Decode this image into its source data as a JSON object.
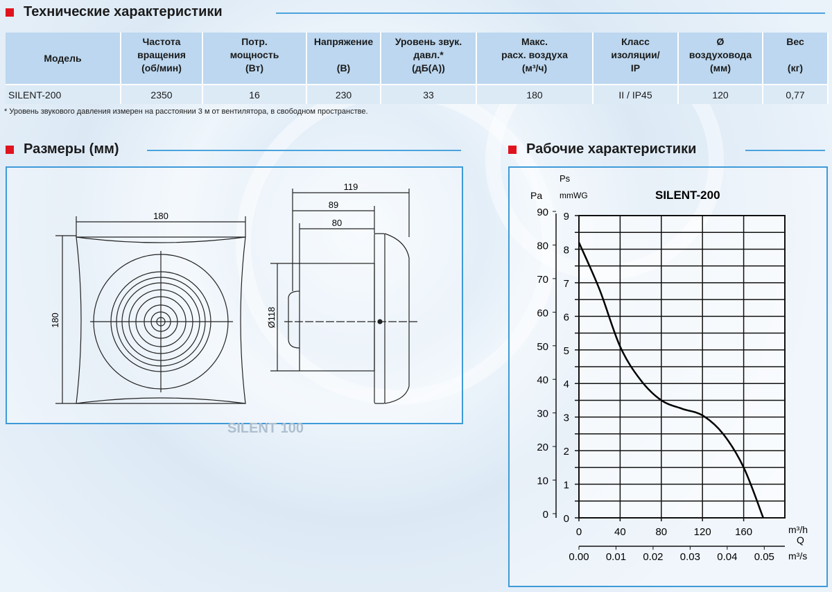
{
  "tech_section": {
    "title": "Технические характеристики",
    "columns": [
      [
        "Модель"
      ],
      [
        "Частота",
        "вращения",
        "(об/мин)"
      ],
      [
        "Потр.",
        "мощность",
        "(Вт)"
      ],
      [
        "Напряжение",
        "",
        "(В)"
      ],
      [
        "Уровень звук.",
        "давл.*",
        "(дБ(А))"
      ],
      [
        "Макс.",
        "расх. воздуха",
        "(м³/ч)"
      ],
      [
        "Класс",
        "изоляции/",
        "IP"
      ],
      [
        "Ø",
        "воздуховода",
        "(мм)"
      ],
      [
        "Вес",
        "",
        "(кг)"
      ]
    ],
    "row": [
      "SILENT-200",
      "2350",
      "16",
      "230",
      "33",
      "180",
      "II / IP45",
      "120",
      "0,77"
    ],
    "footnote": "* Уровень звукового давления измерен на расстоянии 3 м от вентилятора, в свободном пространстве."
  },
  "dimensions_section": {
    "title": "Размеры (мм)",
    "front_width": "180",
    "front_height": "180",
    "side_total": "119",
    "side_89": "89",
    "side_80": "80",
    "duct_diameter": "Ø118",
    "watermark": "SILENT 100"
  },
  "performance_section": {
    "title": "Рабочие характеристики"
  },
  "chart_data": {
    "type": "line",
    "title": "SILENT-200",
    "ylabel": "Ps",
    "y_units": [
      "Pa",
      "mmWG"
    ],
    "xlabel": "Q",
    "x_units": [
      "m³/h",
      "m³/s"
    ],
    "xlim": [
      0,
      200
    ],
    "ylim": [
      0,
      9
    ],
    "x_ticks": [
      "0",
      "40",
      "80",
      "120",
      "160"
    ],
    "x_ticks_values": [
      0,
      40,
      80,
      120,
      160
    ],
    "x2_ticks": [
      "0.00",
      "0.01",
      "0.02",
      "0.03",
      "0.04",
      "0.05"
    ],
    "x2_ticks_values": [
      0,
      0.01,
      0.02,
      0.03,
      0.04,
      0.05
    ],
    "y_ticks": [
      "0",
      "1",
      "2",
      "3",
      "4",
      "5",
      "6",
      "7",
      "8",
      "9"
    ],
    "y_pa_ticks": [
      "0",
      "10",
      "20",
      "30",
      "40",
      "50",
      "60",
      "70",
      "80",
      "90"
    ],
    "grid": true,
    "x": [
      0,
      20,
      40,
      60,
      80,
      100,
      120,
      140,
      160,
      179
    ],
    "y": [
      8.2,
      6.8,
      5.1,
      4.1,
      3.5,
      3.25,
      3.05,
      2.5,
      1.5,
      0
    ],
    "colors": {
      "line": "#000000",
      "frame": "#3e9ad8",
      "accent": "#e0141e"
    }
  }
}
